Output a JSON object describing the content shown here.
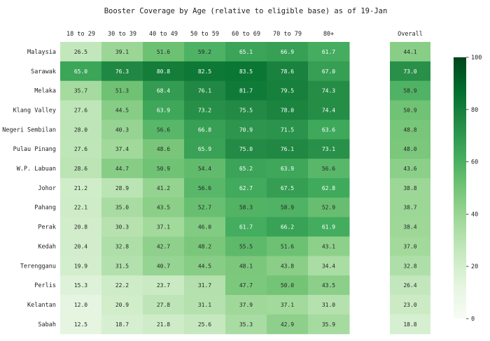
{
  "chart_data": {
    "type": "heatmap",
    "title": "Booster Coverage by Age (relative to eligible base) as of 19-Jan",
    "columns": [
      "18 to 29",
      "30 to 39",
      "40 to 49",
      "50 to 59",
      "60 to 69",
      "70 to 79",
      "80+"
    ],
    "overall_label": "Overall",
    "rows": [
      {
        "label": "Malaysia",
        "values": [
          26.5,
          39.1,
          51.6,
          59.2,
          65.1,
          66.9,
          61.7
        ],
        "overall": 44.1
      },
      {
        "label": "Sarawak",
        "values": [
          65.0,
          76.3,
          80.8,
          82.5,
          83.5,
          78.6,
          67.0
        ],
        "overall": 73.0
      },
      {
        "label": "Melaka",
        "values": [
          35.7,
          51.3,
          68.4,
          76.1,
          81.7,
          79.5,
          74.3
        ],
        "overall": 58.9
      },
      {
        "label": "Klang Valley",
        "values": [
          27.6,
          44.5,
          63.9,
          73.2,
          75.5,
          78.0,
          74.4
        ],
        "overall": 50.9
      },
      {
        "label": "Negeri Sembilan",
        "values": [
          28.0,
          40.3,
          56.6,
          66.8,
          70.9,
          71.5,
          63.6
        ],
        "overall": 48.8
      },
      {
        "label": "Pulau Pinang",
        "values": [
          27.6,
          37.4,
          48.6,
          65.9,
          75.0,
          76.1,
          73.1
        ],
        "overall": 48.0
      },
      {
        "label": "W.P. Labuan",
        "values": [
          28.6,
          44.7,
          50.9,
          54.4,
          65.2,
          63.9,
          56.6
        ],
        "overall": 43.6
      },
      {
        "label": "Johor",
        "values": [
          21.2,
          28.9,
          41.2,
          56.6,
          62.7,
          67.5,
          62.8
        ],
        "overall": 38.8
      },
      {
        "label": "Pahang",
        "values": [
          22.1,
          35.0,
          43.5,
          52.7,
          58.3,
          58.9,
          52.9
        ],
        "overall": 38.7
      },
      {
        "label": "Perak",
        "values": [
          20.8,
          30.3,
          37.1,
          46.0,
          61.7,
          66.2,
          61.9
        ],
        "overall": 38.4
      },
      {
        "label": "Kedah",
        "values": [
          20.4,
          32.8,
          42.7,
          48.2,
          55.5,
          51.6,
          43.1
        ],
        "overall": 37.0
      },
      {
        "label": "Terengganu",
        "values": [
          19.9,
          31.5,
          40.7,
          44.5,
          48.1,
          43.8,
          34.4
        ],
        "overall": 32.8
      },
      {
        "label": "Perlis",
        "values": [
          15.3,
          22.2,
          23.7,
          31.7,
          47.7,
          50.0,
          43.5
        ],
        "overall": 26.4
      },
      {
        "label": "Kelantan",
        "values": [
          12.0,
          20.9,
          27.8,
          31.1,
          37.9,
          37.1,
          31.0
        ],
        "overall": 23.0
      },
      {
        "label": "Sabah",
        "values": [
          12.5,
          18.7,
          21.8,
          25.6,
          35.3,
          42.9,
          35.9
        ],
        "overall": 18.8
      }
    ],
    "colorbar": {
      "min": 0,
      "max": 100,
      "ticks": [
        0,
        20,
        40,
        60,
        80,
        100
      ]
    },
    "colormap": [
      "#f7fcf5",
      "#e5f5e0",
      "#c7e9c0",
      "#a1d99b",
      "#74c476",
      "#41ab5d",
      "#238b45",
      "#006d2c",
      "#00441b"
    ],
    "text_colors": {
      "dark": "#262626",
      "light": "#ffffff"
    }
  }
}
